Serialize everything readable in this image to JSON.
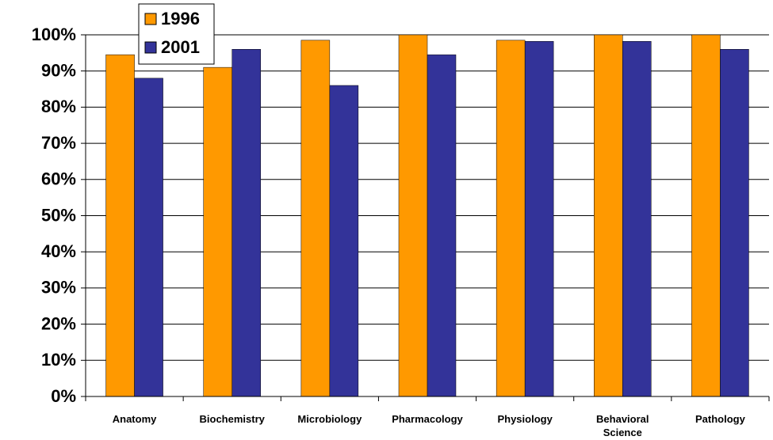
{
  "chart_data": {
    "type": "bar",
    "categories": [
      "Anatomy",
      "Biochemistry",
      "Microbiology",
      "Pharmacology",
      "Physiology",
      "Behavioral Science",
      "Pathology"
    ],
    "series": [
      {
        "name": "1996",
        "color": "#ff9900",
        "values": [
          94.5,
          91,
          98.5,
          100,
          98.5,
          100,
          100
        ]
      },
      {
        "name": "2001",
        "color": "#333399",
        "values": [
          88,
          96,
          86,
          94.5,
          98.2,
          98.2,
          96
        ]
      }
    ],
    "ylim": [
      0,
      100
    ],
    "yticks": [
      {
        "value": 0,
        "label": "0%"
      },
      {
        "value": 10,
        "label": "10%"
      },
      {
        "value": 20,
        "label": "20%"
      },
      {
        "value": 30,
        "label": "30%"
      },
      {
        "value": 40,
        "label": "40%"
      },
      {
        "value": 50,
        "label": "50%"
      },
      {
        "value": 60,
        "label": "60%"
      },
      {
        "value": 70,
        "label": "70%"
      },
      {
        "value": 80,
        "label": "80%"
      },
      {
        "value": 90,
        "label": "90%"
      },
      {
        "value": 100,
        "label": "100%"
      }
    ],
    "grid": true,
    "legend": "top-left"
  }
}
